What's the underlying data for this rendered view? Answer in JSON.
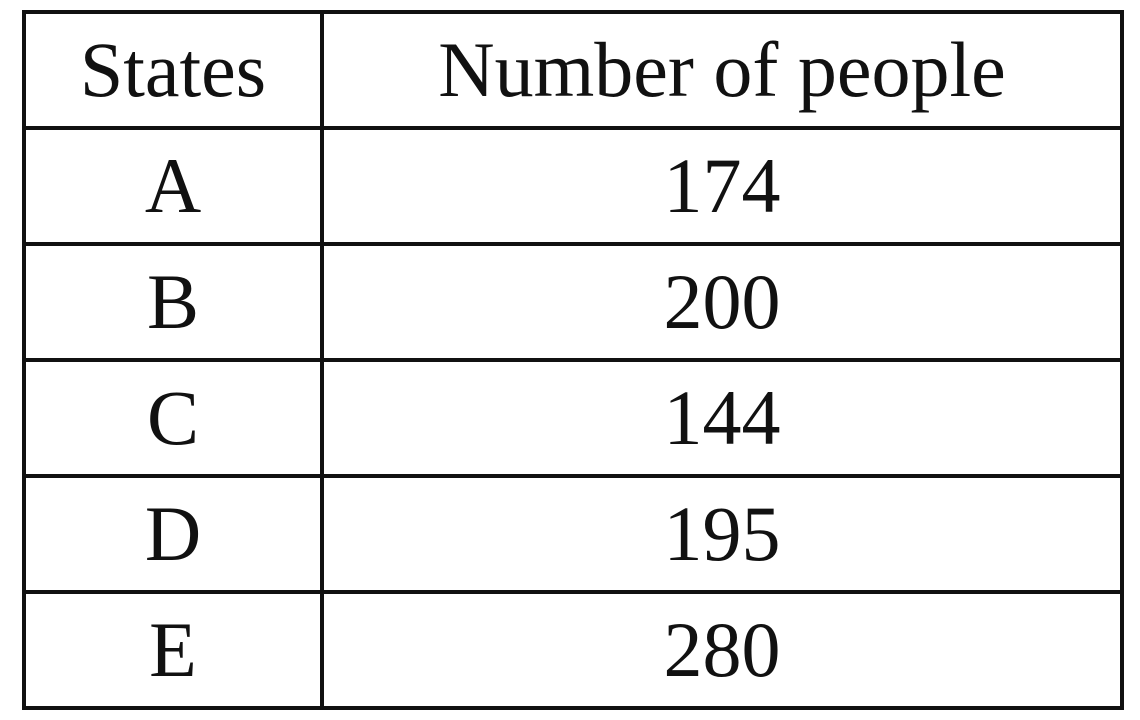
{
  "table": {
    "headers": [
      "States",
      "Number of people"
    ],
    "rows": [
      {
        "state": "A",
        "value": "174"
      },
      {
        "state": "B",
        "value": "200"
      },
      {
        "state": "C",
        "value": "144"
      },
      {
        "state": "D",
        "value": "195"
      },
      {
        "state": "E",
        "value": "280"
      }
    ]
  },
  "chart_data": {
    "type": "table",
    "columns": [
      "States",
      "Number of people"
    ],
    "categories": [
      "A",
      "B",
      "C",
      "D",
      "E"
    ],
    "values": [
      174,
      200,
      144,
      195,
      280
    ]
  }
}
